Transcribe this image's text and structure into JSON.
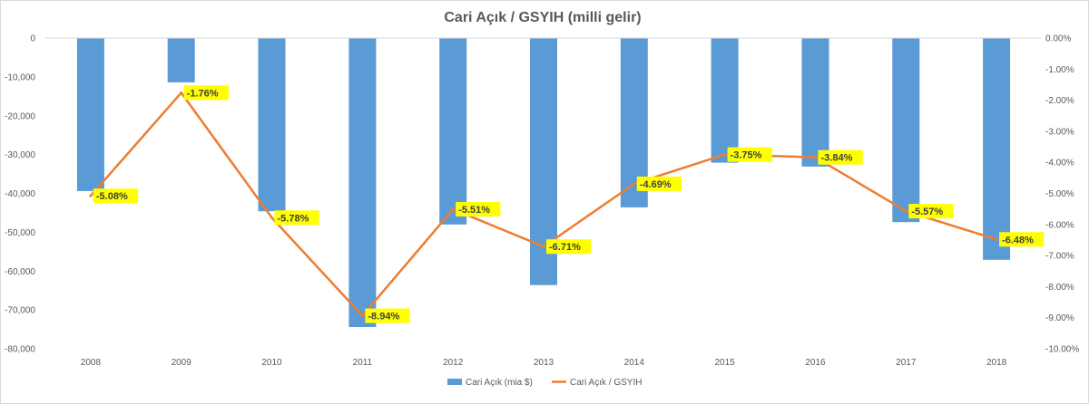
{
  "chart_data": {
    "type": "bar",
    "title": "Cari Açık / GSYIH (milli gelir)",
    "categories": [
      "2008",
      "2009",
      "2010",
      "2011",
      "2012",
      "2013",
      "2014",
      "2015",
      "2016",
      "2017",
      "2018"
    ],
    "series": [
      {
        "name": "Cari Açık (mia $)",
        "type": "bar",
        "axis": "left",
        "color": "#5b9bd5",
        "values": [
          -39400,
          -11400,
          -44600,
          -74400,
          -48000,
          -63600,
          -43600,
          -32100,
          -33100,
          -47400,
          -57100
        ]
      },
      {
        "name": "Cari Açık / GSYIH",
        "type": "line",
        "axis": "right",
        "color": "#ed7d31",
        "values": [
          -5.08,
          -1.76,
          -5.78,
          -8.94,
          -5.51,
          -6.71,
          -4.69,
          -3.75,
          -3.84,
          -5.57,
          -6.48
        ],
        "data_labels": [
          "-5.08%",
          "-1.76%",
          "-5.78%",
          "-8.94%",
          "-5.51%",
          "-6.71%",
          "-4.69%",
          "-3.75%",
          "-3.84%",
          "-5.57%",
          "-6.48%"
        ]
      }
    ],
    "y_left": {
      "min": -80000,
      "max": 0,
      "step": 10000,
      "tick_labels": [
        "0",
        "-10,000",
        "-20,000",
        "-30,000",
        "-40,000",
        "-50,000",
        "-60,000",
        "-70,000",
        "-80,000"
      ]
    },
    "y_right": {
      "min": -10,
      "max": 0,
      "step": 1,
      "tick_labels": [
        "0.00%",
        "-1.00%",
        "-2.00%",
        "-3.00%",
        "-4.00%",
        "-5.00%",
        "-6.00%",
        "-7.00%",
        "-8.00%",
        "-9.00%",
        "-10.00%"
      ]
    },
    "grid": false,
    "legend_position": "bottom",
    "label_highlight_color": "#ffff00"
  }
}
